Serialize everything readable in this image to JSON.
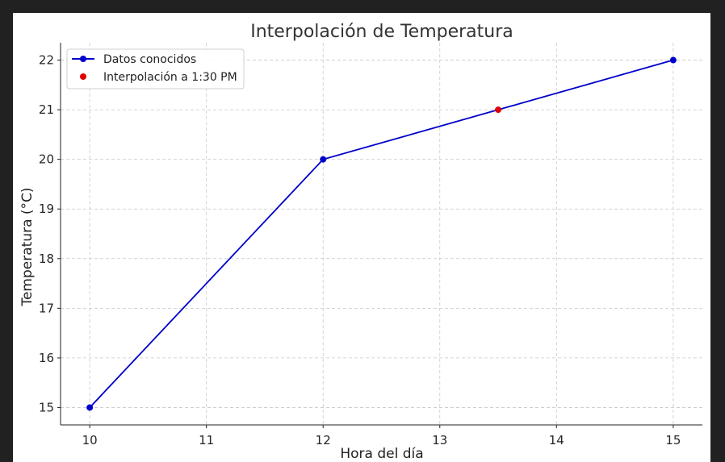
{
  "chart_data": {
    "type": "line",
    "title": "Interpolación de Temperatura",
    "xlabel": "Hora del día",
    "ylabel": "Temperatura (°C)",
    "xlim": [
      9.75,
      15.25
    ],
    "ylim": [
      14.65,
      22.35
    ],
    "xticks": [
      10,
      11,
      12,
      13,
      14,
      15
    ],
    "yticks": [
      15,
      16,
      17,
      18,
      19,
      20,
      21,
      22
    ],
    "grid": true,
    "legend_position": "top-left",
    "series": [
      {
        "name": "Datos conocidos",
        "kind": "line-marker",
        "color": "#0000cc",
        "x": [
          10,
          12,
          15
        ],
        "y": [
          15,
          20,
          22
        ]
      },
      {
        "name": "Interpolación a 1:30 PM",
        "kind": "point",
        "color": "#e00000",
        "x": [
          13.5
        ],
        "y": [
          21
        ]
      }
    ]
  }
}
